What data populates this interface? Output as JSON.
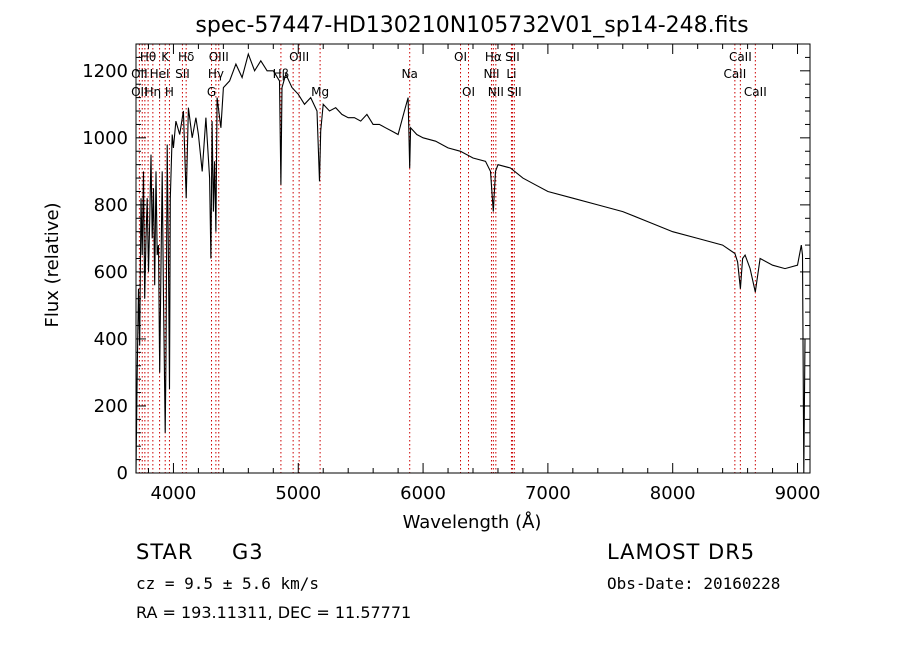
{
  "chart_data": {
    "type": "line",
    "title": "spec-57447-HD130210N105732V01_sp14-248.fits",
    "xlabel": "Wavelength (Å)",
    "ylabel": "Flux (relative)",
    "xlim": [
      3700,
      9100
    ],
    "ylim": [
      0,
      1280
    ],
    "xticks": [
      4000,
      5000,
      6000,
      7000,
      8000,
      9000
    ],
    "yticks": [
      0,
      200,
      400,
      600,
      800,
      1000,
      1200
    ],
    "grid": false,
    "series": [
      {
        "x": [
          3700,
          3710,
          3720,
          3730,
          3740,
          3750,
          3760,
          3770,
          3780,
          3790,
          3800,
          3810,
          3820,
          3830,
          3840,
          3850,
          3860,
          3870,
          3880,
          3890,
          3900,
          3910,
          3920,
          3930,
          3934,
          3940,
          3950,
          3960,
          3968,
          3975,
          3990,
          4000,
          4020,
          4050,
          4080,
          4102,
          4120,
          4150,
          4180,
          4200,
          4230,
          4260,
          4290,
          4300,
          4310,
          4320,
          4330,
          4340,
          4350,
          4380,
          4400,
          4450,
          4500,
          4550,
          4600,
          4650,
          4700,
          4750,
          4800,
          4850,
          4861,
          4870,
          4900,
          4950,
          5000,
          5050,
          5100,
          5150,
          5170,
          5180,
          5200,
          5250,
          5300,
          5350,
          5400,
          5450,
          5500,
          5550,
          5600,
          5650,
          5700,
          5750,
          5800,
          5850,
          5880,
          5893,
          5900,
          5950,
          6000,
          6100,
          6200,
          6300,
          6400,
          6500,
          6540,
          6563,
          6580,
          6600,
          6700,
          6800,
          6900,
          7000,
          7200,
          7400,
          7600,
          7800,
          8000,
          8200,
          8400,
          8498,
          8520,
          8542,
          8560,
          8580,
          8620,
          8662,
          8700,
          8800,
          8900,
          9000,
          9030,
          9040,
          9050,
          9060
        ],
        "y": [
          0,
          300,
          550,
          380,
          820,
          650,
          900,
          520,
          700,
          820,
          600,
          750,
          950,
          700,
          850,
          560,
          900,
          650,
          680,
          300,
          620,
          900,
          520,
          240,
          120,
          350,
          980,
          620,
          250,
          820,
          1010,
          970,
          1050,
          1010,
          1080,
          820,
          1090,
          1000,
          1060,
          1010,
          900,
          1060,
          880,
          640,
          1050,
          780,
          930,
          720,
          1120,
          1030,
          1150,
          1170,
          1220,
          1180,
          1250,
          1200,
          1230,
          1200,
          1200,
          1170,
          860,
          1150,
          1190,
          1150,
          1130,
          1100,
          1120,
          1080,
          870,
          1020,
          1100,
          1080,
          1090,
          1070,
          1060,
          1060,
          1050,
          1070,
          1040,
          1040,
          1030,
          1020,
          1010,
          1080,
          1120,
          910,
          1030,
          1010,
          1000,
          990,
          970,
          960,
          940,
          930,
          900,
          780,
          900,
          920,
          910,
          880,
          860,
          840,
          820,
          800,
          780,
          750,
          720,
          700,
          680,
          655,
          630,
          550,
          640,
          650,
          610,
          540,
          640,
          620,
          610,
          620,
          680,
          650,
          0,
          400
        ]
      }
    ],
    "line_markers": [
      {
        "label": "Hθ",
        "x": 3797,
        "row": 1
      },
      {
        "label": "OII",
        "x": 3727,
        "row": 2
      },
      {
        "label": "OII",
        "x": 3727,
        "row": 3
      },
      {
        "label": "Hη",
        "x": 3835,
        "row": 3
      },
      {
        "label": "HeI",
        "x": 3889,
        "row": 2
      },
      {
        "label": "K",
        "x": 3934,
        "row": 1
      },
      {
        "label": "H",
        "x": 3968,
        "row": 3
      },
      {
        "label": "Hδ",
        "x": 4102,
        "row": 1
      },
      {
        "label": "SII",
        "x": 4072,
        "row": 2
      },
      {
        "label": "OIII",
        "x": 4363,
        "row": 1
      },
      {
        "label": "Hγ",
        "x": 4340,
        "row": 2
      },
      {
        "label": "G",
        "x": 4305,
        "row": 3
      },
      {
        "label": "OIII",
        "x": 5007,
        "row": 1
      },
      {
        "label": "Hβ",
        "x": 4861,
        "row": 2
      },
      {
        "label": "Mg",
        "x": 5175,
        "row": 3
      },
      {
        "label": "Na",
        "x": 5893,
        "row": 2
      },
      {
        "label": "OI",
        "x": 6300,
        "row": 1
      },
      {
        "label": "OI",
        "x": 6364,
        "row": 3
      },
      {
        "label": "Hα",
        "x": 6563,
        "row": 1
      },
      {
        "label": "NII",
        "x": 6548,
        "row": 2
      },
      {
        "label": "NII",
        "x": 6583,
        "row": 3
      },
      {
        "label": "SII",
        "x": 6716,
        "row": 1
      },
      {
        "label": "Li",
        "x": 6708,
        "row": 2
      },
      {
        "label": "SII",
        "x": 6731,
        "row": 3
      },
      {
        "label": "CaII",
        "x": 8542,
        "row": 1
      },
      {
        "label": "CaII",
        "x": 8498,
        "row": 2
      },
      {
        "label": "CaII",
        "x": 8662,
        "row": 3
      }
    ],
    "marker_lines_x": [
      3727,
      3750,
      3771,
      3797,
      3835,
      3889,
      3934,
      3968,
      4072,
      4102,
      4305,
      4340,
      4363,
      4861,
      4959,
      5007,
      5175,
      5893,
      6300,
      6364,
      6548,
      6563,
      6583,
      6708,
      6716,
      6731,
      8498,
      8542,
      8662
    ]
  },
  "info": {
    "object_class": "STAR",
    "subclass": "G3",
    "survey": "LAMOST  DR5",
    "cz_line": "cz = 9.5 ± 5.6 km/s",
    "obs_date": "Obs-Date: 20160228",
    "coords": "RA = 193.11311, DEC =  11.57771"
  }
}
